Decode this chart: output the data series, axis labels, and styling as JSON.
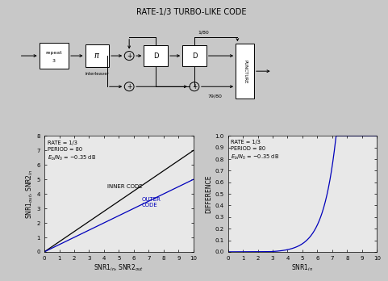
{
  "title": "RATE-1/3 TURBO-LIKE CODE",
  "left_plot": {
    "xlabel": "SNR1$_{in}$, SNR2$_{out}$",
    "ylabel": "SNR1$_{out}$, SNR2$_{in}$",
    "xlim": [
      0,
      10
    ],
    "ylim": [
      0,
      8
    ],
    "xticks": [
      0,
      1,
      2,
      3,
      4,
      5,
      6,
      7,
      8,
      9,
      10
    ],
    "yticks": [
      0,
      1,
      2,
      3,
      4,
      5,
      6,
      7,
      8
    ],
    "annotation_text": "RATE = 1/3\nPERIOD = 80\n$E_b/N_0$ = −0.35 dB",
    "inner_label": "INNER CODE",
    "outer_label": "OUTER\nCODE",
    "inner_slope": 0.7,
    "outer_slope": 0.5
  },
  "right_plot": {
    "xlabel": "SNR1$_{in}$",
    "ylabel": "DIFFERENCE",
    "xlim": [
      0,
      10
    ],
    "ylim": [
      0,
      1.0
    ],
    "yticks": [
      0.0,
      0.1,
      0.2,
      0.3,
      0.4,
      0.5,
      0.6,
      0.7,
      0.8,
      0.9,
      1.0
    ],
    "xticks": [
      0,
      1,
      2,
      3,
      4,
      5,
      6,
      7,
      8,
      9,
      10
    ],
    "annotation_text": "RATE = 1/3\nPERIOD = 80\n$E_b/N_0$ = −0.35 dB",
    "curve_knee": 2.8,
    "curve_exp": 1.15
  },
  "line_color_inner": "#000000",
  "line_color_outer": "#0000bb",
  "line_color_diff": "#0000bb",
  "fig_bg": "#c8c8c8",
  "plot_bg": "#e8e8e8"
}
